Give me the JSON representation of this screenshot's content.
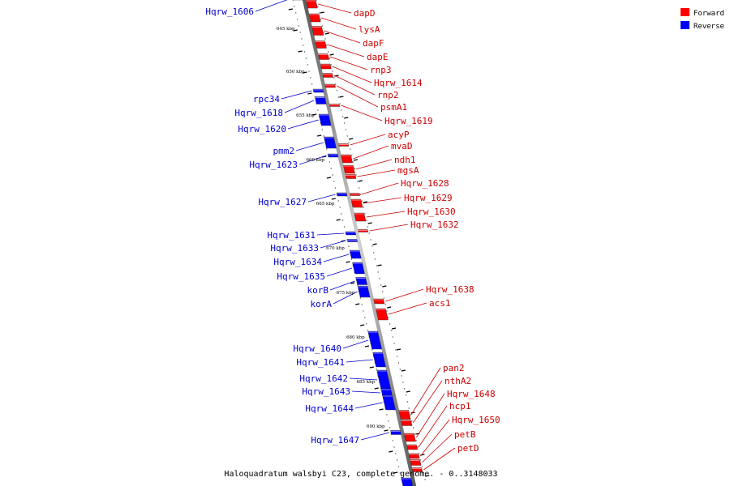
{
  "legend": [
    {
      "label": "Forward",
      "color": "#ff0000"
    },
    {
      "label": "Reverse",
      "color": "#0000ff"
    }
  ],
  "caption": "Haloquadratum walsbyi C23, complete genome. - 0..3148033",
  "scale_labels": [
    "645 kbp",
    "650 kbp",
    "655 kbp",
    "660 kbp",
    "665 kbp",
    "670 kbp",
    "675 kbp",
    "680 kbp",
    "685 kbp",
    "690 kbp"
  ],
  "forward_labels": [
    "dapD",
    "lysA",
    "dapF",
    "dapE",
    "rnp3",
    "Hqrw_1614",
    "rnp2",
    "psmA1",
    "Hqrw_1619",
    "acyP",
    "mvaD",
    "ndh1",
    "mgsA",
    "Hqrw_1628",
    "Hqrw_1629",
    "Hqrw_1630",
    "Hqrw_1632",
    "Hqrw_1638",
    "acs1",
    "pan2",
    "nthA2",
    "Hqrw_1648",
    "hcp1",
    "Hqrw_1650",
    "petB",
    "petD"
  ],
  "reverse_labels": [
    "Hqrw_1606",
    "rpc34",
    "Hqrw_1618",
    "Hqrw_1620",
    "pmm2",
    "Hqrw_1623",
    "Hqrw_1627",
    "Hqrw_1631",
    "Hqrw_1633",
    "Hqrw_1634",
    "Hqrw_1635",
    "korB",
    "korA",
    "Hqrw_1640",
    "Hqrw_1641",
    "Hqrw_1642",
    "Hqrw_1643",
    "Hqrw_1644",
    "Hqrw_1647"
  ]
}
